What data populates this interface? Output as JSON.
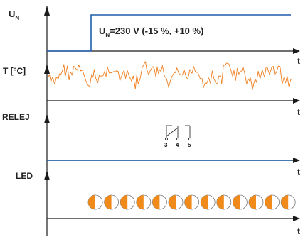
{
  "supply": {
    "label_main": "U",
    "label_sub": "N",
    "annotation_main": "U",
    "annotation_sub": "N",
    "annotation_rest": "=230 V (-15 %, +10 %)"
  },
  "temperature": {
    "label": "T [°C]"
  },
  "relay": {
    "label": "RELEJ",
    "contacts": [
      "3",
      "4",
      "5"
    ]
  },
  "led": {
    "label": "LED",
    "count": 13
  },
  "time_label": "t",
  "colors": {
    "signal": "#1f5fae",
    "temperature": "#f07e1e",
    "led_on": "#f08a1a",
    "led_outline": "#777777",
    "axis": "#1a1a1a"
  }
}
